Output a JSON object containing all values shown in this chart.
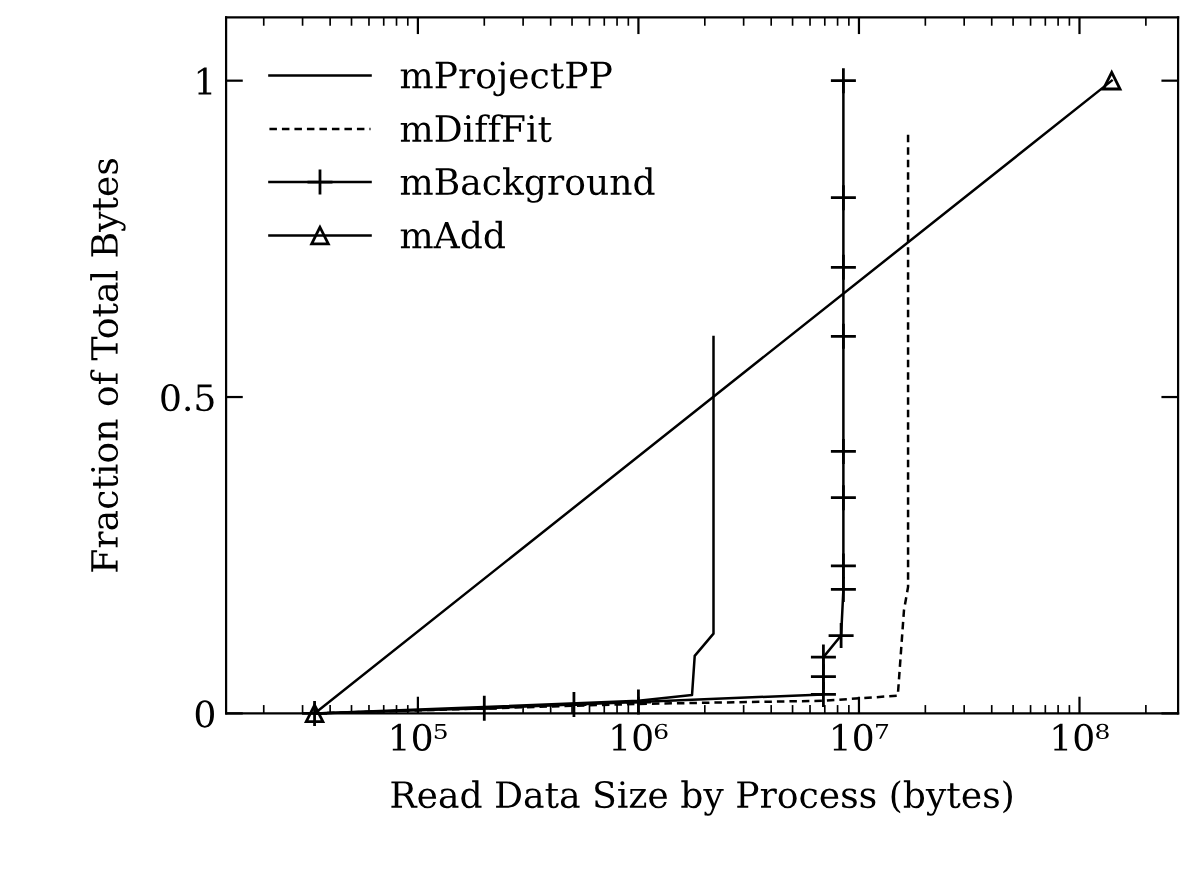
{
  "chart_data": {
    "type": "line",
    "xlabel": "Read Data Size by Process (bytes)",
    "ylabel": "Fraction of Total Bytes",
    "log": "x",
    "xlim": [
      13500,
      280000000
    ],
    "xticks": [
      {
        "value": 100000,
        "label": "10⁵"
      },
      {
        "value": 1000000,
        "label": "10⁶"
      },
      {
        "value": 10000000,
        "label": "10⁷"
      },
      {
        "value": 100000000,
        "label": "10⁸"
      }
    ],
    "ylim": [
      0,
      1.1
    ],
    "yticks": [
      0,
      0.5,
      1
    ],
    "grid": false,
    "legend": "top left",
    "series": [
      {
        "name": "mProjectPP",
        "color": "#000000",
        "line_style": "solid",
        "marker": "none",
        "x": [
          34000,
          200000,
          1000000,
          1750000,
          1800000,
          2190000,
          2190000
        ],
        "values": [
          0,
          0.01,
          0.02,
          0.029,
          0.091,
          0.126,
          0.595
        ]
      },
      {
        "name": "mDiffFit",
        "color": "#000000",
        "line_style": "dashed",
        "marker": "none",
        "x": [
          34000,
          1000000,
          7000000,
          15000000,
          16000000,
          16700000,
          16700000
        ],
        "values": [
          0,
          0.015,
          0.02,
          0.028,
          0.163,
          0.2,
          0.918
        ]
      },
      {
        "name": "mBackground",
        "color": "#000000",
        "line_style": "solid",
        "marker": "cross",
        "x": [
          34000,
          200000,
          510000,
          1000000,
          6900000,
          6900000,
          6900000,
          8300000,
          8500000,
          8500000,
          8500000,
          8500000,
          8500000,
          8500000,
          8500000,
          8500000
        ],
        "values": [
          0,
          0.008,
          0.014,
          0.018,
          0.03,
          0.058,
          0.089,
          0.123,
          0.196,
          0.233,
          0.341,
          0.414,
          0.596,
          0.705,
          0.815,
          1
        ]
      },
      {
        "name": "mAdd",
        "color": "#000000",
        "line_style": "solid",
        "marker": "triangle",
        "x": [
          34000,
          140000000
        ],
        "values": [
          0,
          1
        ]
      }
    ]
  }
}
